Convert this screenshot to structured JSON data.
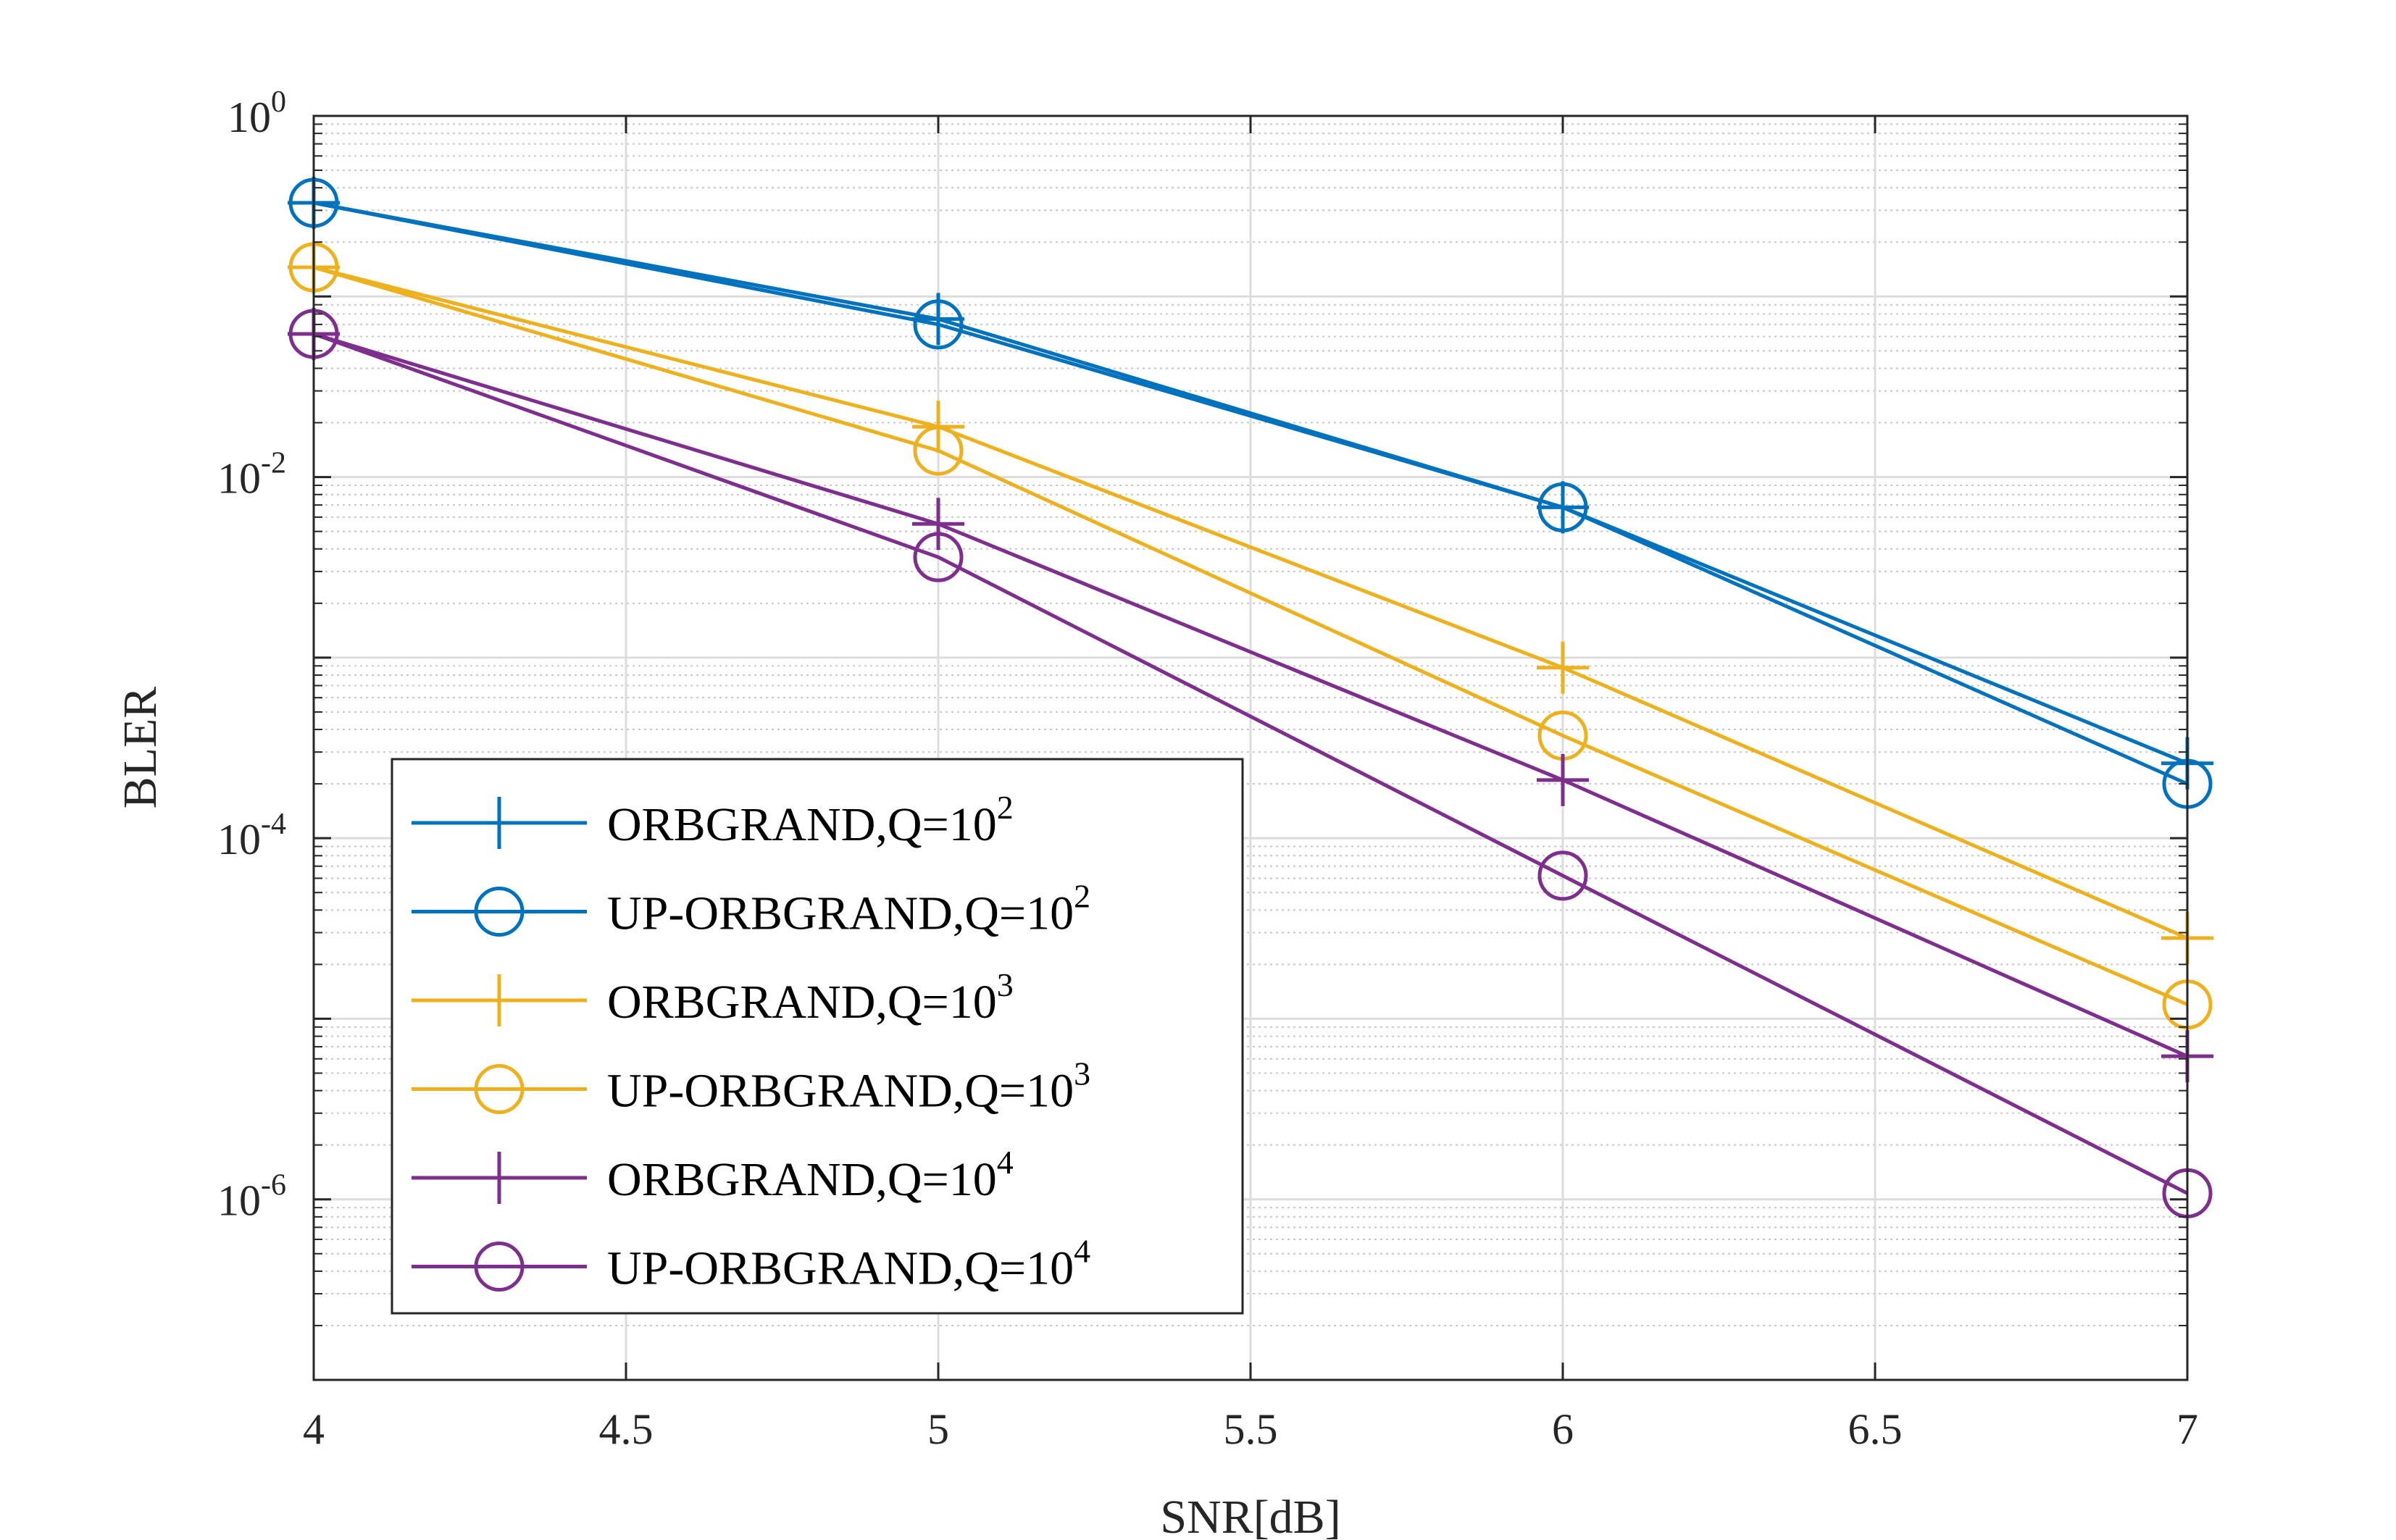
{
  "chart_data": {
    "type": "line",
    "title": "",
    "xlabel": "SNR[dB]",
    "ylabel": "BLER",
    "x": [
      4,
      5,
      6,
      7
    ],
    "xlim": [
      4,
      7
    ],
    "xticks": [
      "4",
      "4.5",
      "5",
      "5.5",
      "6",
      "6.5",
      "7"
    ],
    "ylim": [
      1e-07,
      1
    ],
    "yscale": "log",
    "yticks": [
      {
        "base": "10",
        "exp": "0"
      },
      {
        "base": "10",
        "exp": "-2"
      },
      {
        "base": "10",
        "exp": "-4"
      },
      {
        "base": "10",
        "exp": "-6"
      }
    ],
    "grid": true,
    "legend_position": "lower-left",
    "series": [
      {
        "name": "ORBGRAND,Q=10",
        "sup": "2",
        "color": "#0072BD",
        "marker": "plus",
        "values": [
          0.33,
          0.075,
          0.0068,
          0.00026
        ]
      },
      {
        "name": "UP-ORBGRAND,Q=10",
        "sup": "2",
        "color": "#0072BD",
        "marker": "circle",
        "values": [
          0.33,
          0.07,
          0.0068,
          0.0002
        ]
      },
      {
        "name": "ORBGRAND,Q=10",
        "sup": "3",
        "color": "#EDB120",
        "marker": "plus",
        "values": [
          0.145,
          0.019,
          0.00088,
          2.8e-05
        ]
      },
      {
        "name": "UP-ORBGRAND,Q=10",
        "sup": "3",
        "color": "#EDB120",
        "marker": "circle",
        "values": [
          0.145,
          0.014,
          0.00037,
          1.2e-05
        ]
      },
      {
        "name": "ORBGRAND,Q=10",
        "sup": "4",
        "color": "#7E2F8E",
        "marker": "plus",
        "values": [
          0.062,
          0.0055,
          0.00021,
          6.2e-06
        ]
      },
      {
        "name": "UP-ORBGRAND,Q=10",
        "sup": "4",
        "color": "#7E2F8E",
        "marker": "circle",
        "values": [
          0.062,
          0.0036,
          6.2e-05,
          1.08e-06
        ]
      }
    ]
  }
}
